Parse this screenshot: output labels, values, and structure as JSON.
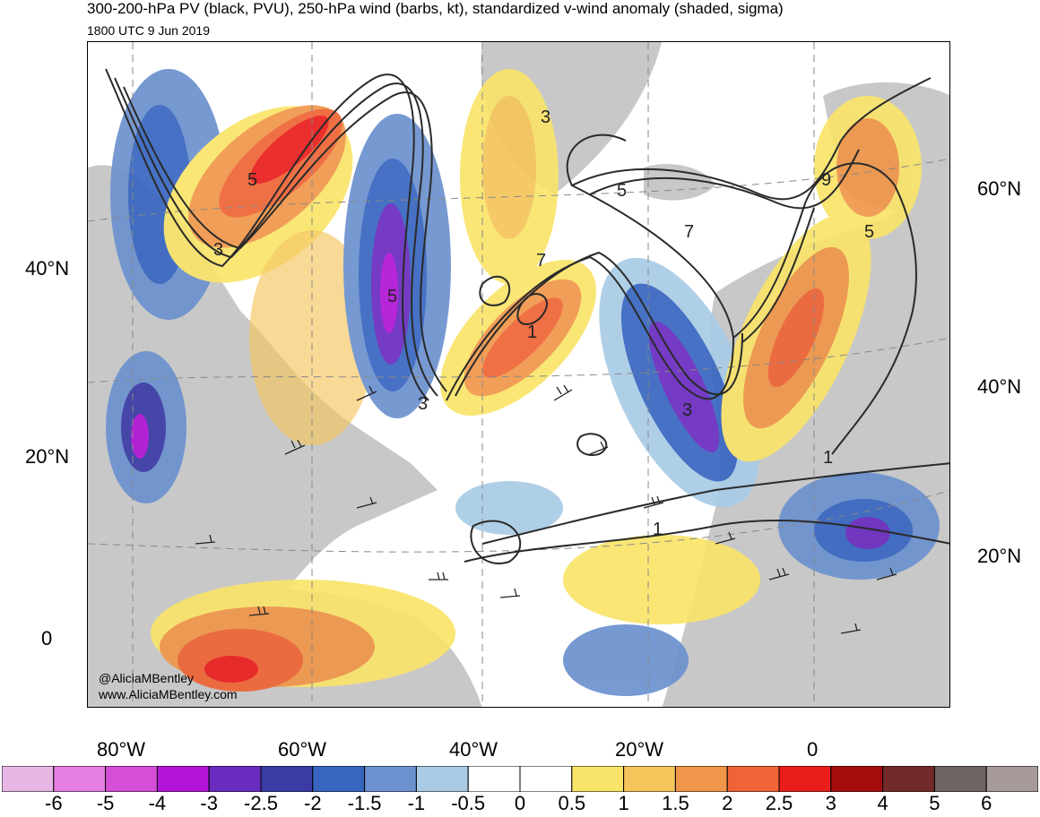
{
  "title": "300-200-hPa PV (black, PVU), 250-hPa wind (barbs, kt), standardized v-wind anomaly (shaded, sigma)",
  "subtitle": "1800 UTC 9 Jun 2019",
  "map": {
    "lat_labels_left": [
      "40°N",
      "20°N",
      "0"
    ],
    "lat_labels_right": [
      "60°N",
      "40°N",
      "20°N"
    ],
    "lon_labels_bottom": [
      "80°W",
      "60°W",
      "40°W",
      "20°W",
      "0"
    ],
    "pv_contour_labels": [
      "3",
      "3",
      "3",
      "3",
      "5",
      "5",
      "5",
      "5",
      "7",
      "7",
      "9",
      "1",
      "1",
      "1"
    ],
    "credit_handle": "@AliciaMBentley",
    "credit_url": "www.AliciaMBentley.com"
  },
  "colorbar": {
    "labels": [
      "-6",
      "-5",
      "-4",
      "-3",
      "-2.5",
      "-2",
      "-1.5",
      "-1",
      "-0.5",
      "0",
      "0.5",
      "1",
      "1.5",
      "2",
      "2.5",
      "3",
      "4",
      "5",
      "6"
    ],
    "colors": [
      "#e9b7e6",
      "#e57fe2",
      "#d44ed8",
      "#b114d6",
      "#6a2bbf",
      "#3b3ba6",
      "#3766c0",
      "#6b91cf",
      "#a9cbe6",
      "#ffffff",
      "#ffffff",
      "#f9e46a",
      "#f5c55c",
      "#f0964a",
      "#ef6436",
      "#ea1d1d",
      "#a30d0d",
      "#722a2a",
      "#6e6562",
      "#a79b9a"
    ]
  },
  "colors": {
    "land": "#c8c8c8",
    "contour": "#2a2a2a",
    "grid": "#888888"
  }
}
